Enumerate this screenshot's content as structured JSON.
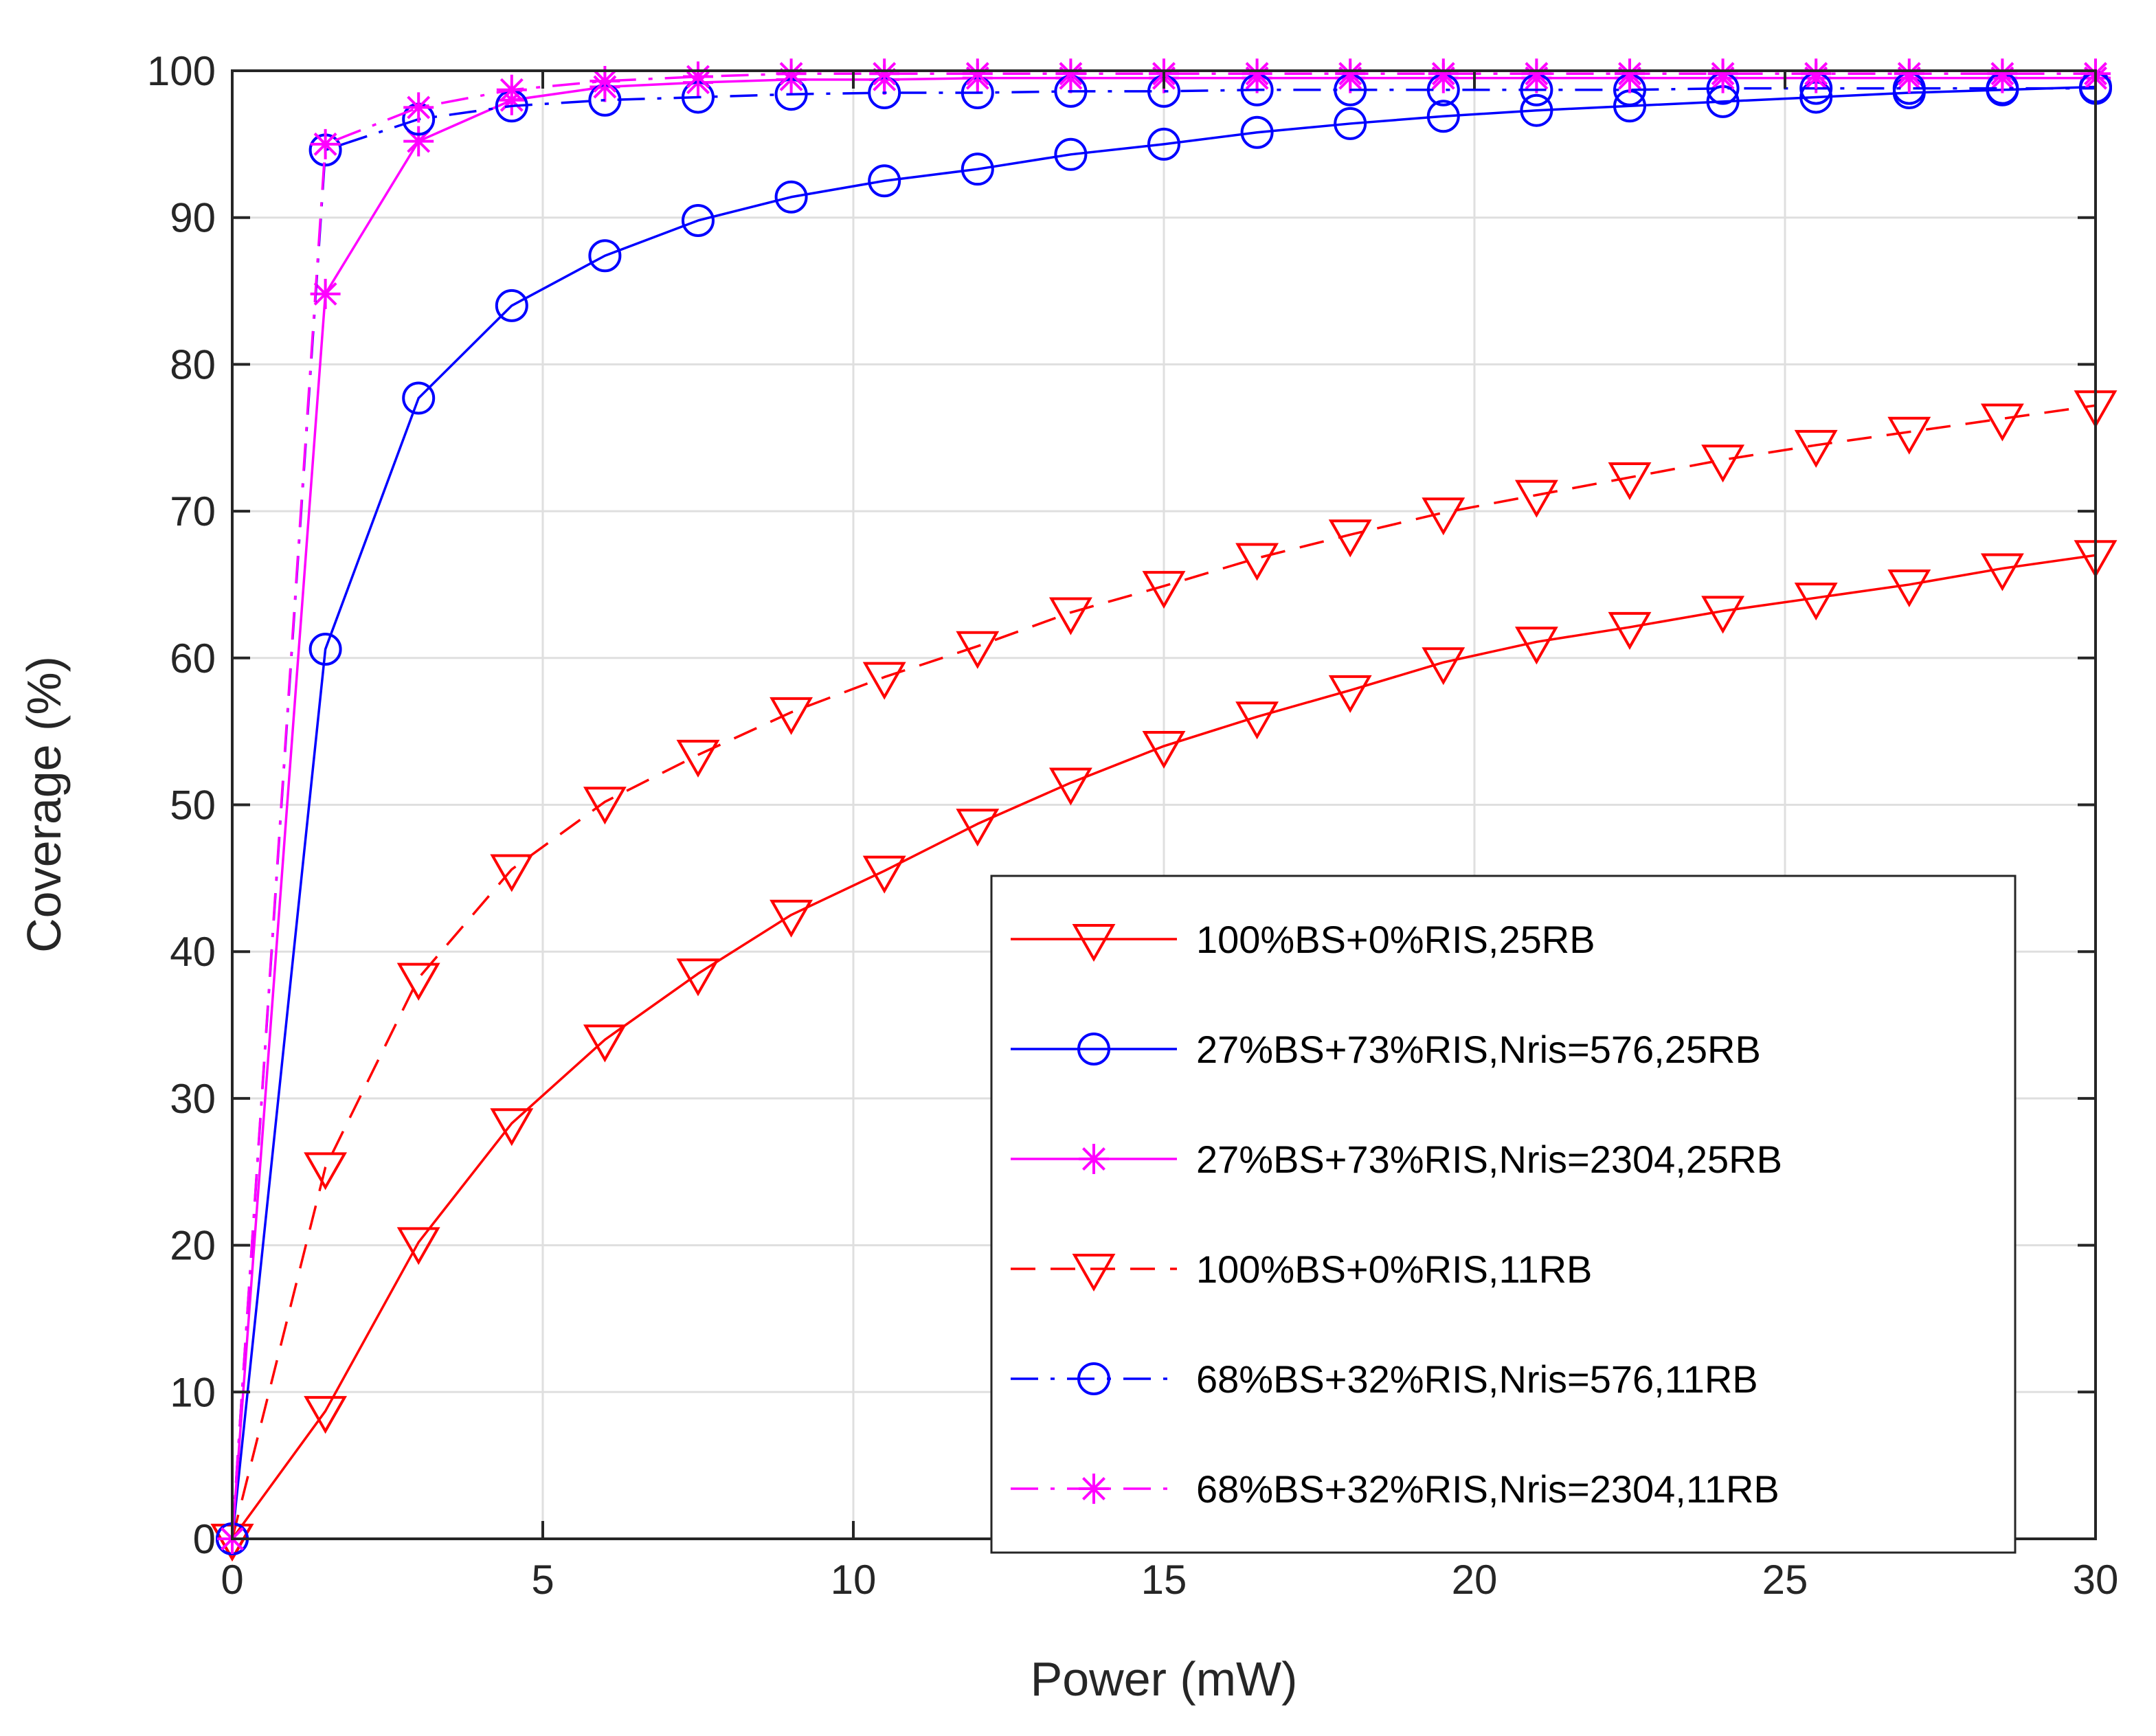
{
  "chart_data": {
    "type": "line",
    "title": "",
    "xlabel": "Power (mW)",
    "ylabel": "Coverage (%)",
    "xlim": [
      0,
      30
    ],
    "ylim": [
      0,
      100
    ],
    "grid": true,
    "legend_position": "center-right",
    "x_ticks": [
      0,
      5,
      10,
      15,
      20,
      25,
      30
    ],
    "y_ticks": [
      0,
      10,
      20,
      30,
      40,
      50,
      60,
      70,
      80,
      90,
      100
    ],
    "x": [
      0,
      1.5,
      3,
      4.5,
      6,
      7.5,
      9,
      10.5,
      12,
      13.5,
      15,
      16.5,
      18,
      19.5,
      21,
      22.5,
      24,
      25.5,
      27,
      28.5,
      30
    ],
    "series": [
      {
        "name": "100%BS+0%RIS,25RB",
        "color": "#ff0000",
        "line_style": "solid",
        "marker": "triangle-down",
        "values": [
          0,
          8.7,
          20.2,
          28.3,
          34.0,
          38.5,
          42.5,
          45.5,
          48.7,
          51.5,
          54.0,
          56.0,
          57.8,
          59.7,
          61.1,
          62.1,
          63.2,
          64.1,
          65.0,
          66.1,
          67.0
        ]
      },
      {
        "name": "27%BS+73%RIS,Nris=576,25RB",
        "color": "#0000ff",
        "line_style": "solid",
        "marker": "circle",
        "values": [
          0,
          60.6,
          77.7,
          84.0,
          87.4,
          89.8,
          91.4,
          92.5,
          93.3,
          94.3,
          95.0,
          95.8,
          96.4,
          96.9,
          97.3,
          97.6,
          97.9,
          98.2,
          98.5,
          98.7,
          98.9
        ]
      },
      {
        "name": "27%BS+73%RIS,Nris=2304,25RB",
        "color": "#ff00ff",
        "line_style": "solid",
        "marker": "asterisk",
        "values": [
          0,
          84.8,
          95.2,
          98.0,
          98.9,
          99.2,
          99.4,
          99.4,
          99.5,
          99.5,
          99.5,
          99.5,
          99.5,
          99.5,
          99.5,
          99.5,
          99.5,
          99.5,
          99.5,
          99.5,
          99.5
        ]
      },
      {
        "name": "100%BS+0%RIS,11RB",
        "color": "#ff0000",
        "line_style": "dashed",
        "marker": "triangle-down",
        "values": [
          0,
          25.3,
          38.2,
          45.6,
          50.2,
          53.4,
          56.3,
          58.7,
          60.8,
          63.1,
          64.9,
          66.8,
          68.4,
          69.9,
          71.1,
          72.3,
          73.5,
          74.5,
          75.4,
          76.3,
          77.2
        ]
      },
      {
        "name": "68%BS+32%RIS,Nris=576,11RB",
        "color": "#0000ff",
        "line_style": "dashdot",
        "marker": "circle",
        "values": [
          0,
          94.6,
          96.7,
          97.6,
          98.0,
          98.2,
          98.4,
          98.5,
          98.5,
          98.6,
          98.6,
          98.7,
          98.7,
          98.7,
          98.7,
          98.7,
          98.8,
          98.8,
          98.8,
          98.8,
          98.8
        ]
      },
      {
        "name": "68%BS+32%RIS,Nris=2304,11RB",
        "color": "#ff00ff",
        "line_style": "dashdot",
        "marker": "asterisk",
        "values": [
          0,
          95.0,
          97.5,
          98.7,
          99.3,
          99.6,
          99.8,
          99.8,
          99.8,
          99.8,
          99.8,
          99.8,
          99.8,
          99.8,
          99.8,
          99.8,
          99.8,
          99.8,
          99.8,
          99.8,
          99.8
        ]
      }
    ]
  }
}
